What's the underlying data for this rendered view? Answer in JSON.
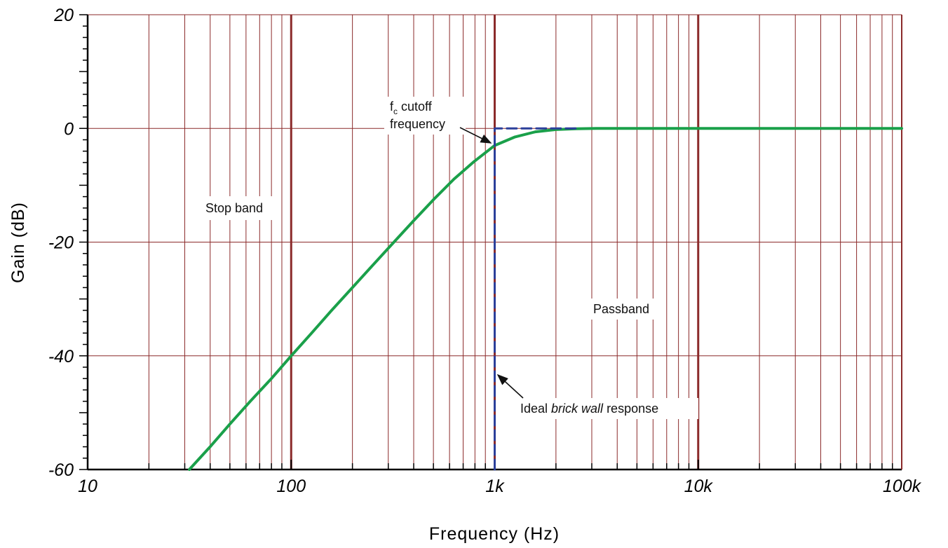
{
  "chart_data": {
    "type": "line",
    "title": "",
    "xlabel": "Frequency (Hz)",
    "ylabel": "Gain (dB)",
    "x_scale": "log",
    "xlim": [
      10,
      100000
    ],
    "ylim": [
      -60,
      20
    ],
    "x_ticks": [
      {
        "value": 10,
        "label": "10"
      },
      {
        "value": 100,
        "label": "100"
      },
      {
        "value": 1000,
        "label": "1k"
      },
      {
        "value": 10000,
        "label": "10k"
      },
      {
        "value": 100000,
        "label": "100k"
      }
    ],
    "y_ticks": [
      {
        "value": 20,
        "label": "20"
      },
      {
        "value": 0,
        "label": "0"
      },
      {
        "value": -20,
        "label": "-20"
      },
      {
        "value": -40,
        "label": "-40"
      },
      {
        "value": -60,
        "label": "-60"
      }
    ],
    "grid": true,
    "series": [
      {
        "color": "#1aa04a",
        "x": [
          31.6,
          40,
          50,
          63,
          80,
          100,
          126,
          158,
          200,
          251,
          316,
          398,
          501,
          631,
          794,
          1000,
          1259,
          1585,
          1995,
          2512,
          3162,
          5000,
          10000,
          100000
        ],
        "y": [
          -60,
          -56,
          -52,
          -48,
          -44,
          -40,
          -36,
          -32,
          -28,
          -24.1,
          -20.2,
          -16.3,
          -12.5,
          -8.9,
          -5.8,
          -3.0,
          -1.5,
          -0.6,
          -0.2,
          -0.05,
          0,
          0,
          0,
          0
        ]
      },
      {
        "color": "#2b3f9a",
        "dashed": true,
        "x": [
          1000,
          1000,
          2500
        ],
        "y": [
          -60,
          0,
          0
        ]
      }
    ],
    "annotations": {
      "stop_band": "Stop band",
      "passband": "Passband",
      "fc_main": "f",
      "fc_sub": "c",
      "fc_line1_rest": " cutoff",
      "fc_line2": "frequency",
      "brick_pre": "Ideal ",
      "brick_italic": "brick wall",
      "brick_post": " response"
    },
    "colors": {
      "grid": "#8b2a2a",
      "axis": "#000000"
    }
  }
}
